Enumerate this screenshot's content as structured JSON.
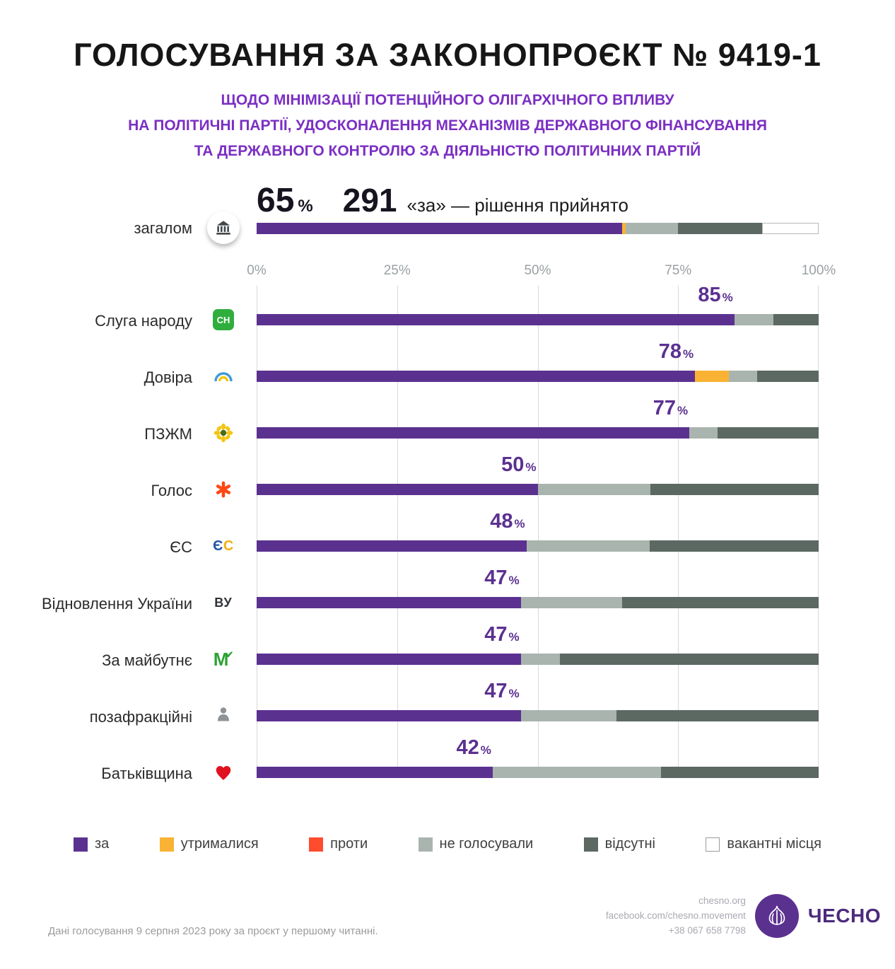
{
  "header": {
    "title": "ГОЛОСУВАННЯ ЗА ЗАКОНОПРОЄКТ № 9419-1",
    "subtitle_lines": [
      "ЩОДО МІНІМІЗАЦІЇ ПОТЕНЦІЙНОГО ОЛІГАРХІЧНОГО ВПЛИВУ",
      "НА ПОЛІТИЧНІ ПАРТІЇ, УДОСКОНАЛЕННЯ МЕХАНІЗМІВ ДЕРЖАВНОГО ФІНАНСУВАННЯ",
      "ТА ДЕРЖАВНОГО КОНТРОЛЮ ЗА ДІЯЛЬНІСТЮ ПОЛІТИЧНИХ ПАРТІЙ"
    ]
  },
  "summary": {
    "percent_value": "65",
    "percent_sign": "%",
    "votes": "291",
    "votes_label": "«за» — рішення прийнято"
  },
  "chart_data": {
    "type": "bar",
    "stacked": true,
    "orientation": "horizontal",
    "title": "ГОЛОСУВАННЯ ЗА ЗАКОНОПРОЄКТ № 9419-1",
    "unit": "%",
    "percent_sign": "%",
    "xlim": [
      0,
      100
    ],
    "x_ticks": [
      "0%",
      "25%",
      "50%",
      "75%",
      "100%"
    ],
    "grid": true,
    "legend_position": "bottom",
    "segment_keys": [
      "za",
      "utrymalysia",
      "proty",
      "ne_holosuvaly",
      "vidsutni",
      "vakantni"
    ],
    "colors": {
      "za": "#5b3190",
      "utrymalysia": "#f9b234",
      "proty": "#ff4b2e",
      "ne_holosuvaly": "#a9b4ae",
      "vidsutni": "#5c6862",
      "vakantni": "#ffffff"
    },
    "overall": {
      "label": "загалом",
      "icon": "parliament-icon",
      "pct_label": "65",
      "segments": {
        "za": 65,
        "utrymalysia": 0.7,
        "proty": 0,
        "ne_holosuvaly": 9.3,
        "vidsutni": 15,
        "vakantni": 10
      }
    },
    "rows": [
      {
        "label": "Слуга народу",
        "icon": "sluha-narodu-icon",
        "pct_label": "85",
        "segments": {
          "za": 85,
          "utrymalysia": 0,
          "proty": 0,
          "ne_holosuvaly": 7,
          "vidsutni": 8,
          "vakantni": 0
        }
      },
      {
        "label": "Довіра",
        "icon": "dovira-icon",
        "pct_label": "78",
        "segments": {
          "za": 78,
          "utrymalysia": 6,
          "proty": 0,
          "ne_holosuvaly": 5,
          "vidsutni": 11,
          "vakantni": 0
        }
      },
      {
        "label": "ПЗЖМ",
        "icon": "pzzhm-icon",
        "pct_label": "77",
        "segments": {
          "za": 77,
          "utrymalysia": 0,
          "proty": 0,
          "ne_holosuvaly": 5,
          "vidsutni": 18,
          "vakantni": 0
        }
      },
      {
        "label": "Голос",
        "icon": "holos-icon",
        "pct_label": "50",
        "segments": {
          "za": 50,
          "utrymalysia": 0,
          "proty": 0,
          "ne_holosuvaly": 20,
          "vidsutni": 30,
          "vakantni": 0
        }
      },
      {
        "label": "ЄС",
        "icon": "yes-icon",
        "pct_label": "48",
        "segments": {
          "za": 48,
          "utrymalysia": 0,
          "proty": 0,
          "ne_holosuvaly": 22,
          "vidsutni": 30,
          "vakantni": 0
        }
      },
      {
        "label": "Відновлення України",
        "icon": "vu-icon",
        "pct_label": "47",
        "segments": {
          "za": 47,
          "utrymalysia": 0,
          "proty": 0,
          "ne_holosuvaly": 18,
          "vidsutni": 35,
          "vakantni": 0
        }
      },
      {
        "label": "За майбутнє",
        "icon": "za-maibutnie-icon",
        "pct_label": "47",
        "segments": {
          "za": 47,
          "utrymalysia": 0,
          "proty": 0,
          "ne_holosuvaly": 7,
          "vidsutni": 46,
          "vakantni": 0
        }
      },
      {
        "label": "позафракційні",
        "icon": "non-faction-icon",
        "pct_label": "47",
        "segments": {
          "za": 47,
          "utrymalysia": 0,
          "proty": 0,
          "ne_holosuvaly": 17,
          "vidsutni": 36,
          "vakantni": 0
        }
      },
      {
        "label": "Батьківщина",
        "icon": "batkivshchyna-icon",
        "pct_label": "42",
        "segments": {
          "za": 42,
          "utrymalysia": 0,
          "proty": 0,
          "ne_holosuvaly": 30,
          "vidsutni": 28,
          "vakantni": 0
        }
      }
    ]
  },
  "legend": [
    {
      "key": "za",
      "label": "за",
      "color": "#5b3190"
    },
    {
      "key": "utrymalysia",
      "label": "утрималися",
      "color": "#f9b234"
    },
    {
      "key": "proty",
      "label": "проти",
      "color": "#ff4b2e"
    },
    {
      "key": "ne_holosuvaly",
      "label": "не голосували",
      "color": "#a9b4ae"
    },
    {
      "key": "vidsutni",
      "label": "відсутні",
      "color": "#5c6862"
    },
    {
      "key": "vakantni",
      "label": "вакантні місця",
      "color": "#ffffff"
    }
  ],
  "footer": {
    "note": "Дані голосування 9 серпня 2023 року за проєкт у першому читанні.",
    "website": "chesno.org",
    "facebook": "facebook.com/chesno.movement",
    "phone": "+38 067 658 7798",
    "brand": "ЧЕСНО"
  }
}
